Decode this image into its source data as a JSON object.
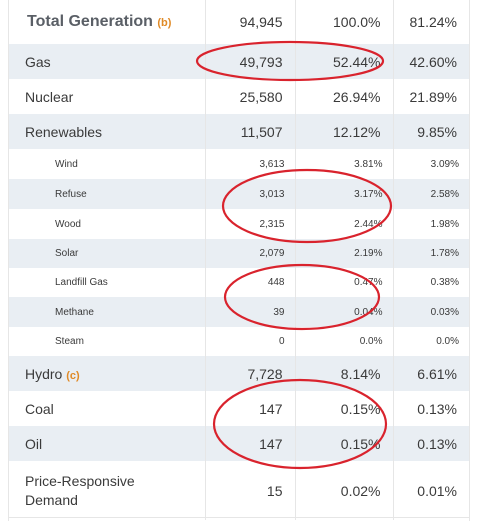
{
  "annotation_color": "#d9232d",
  "rows": [
    {
      "label": "Total Generation",
      "note": "(b)",
      "value": "94,945",
      "share_total": "100.0%",
      "share_other": "81.24%"
    },
    {
      "label": "Gas",
      "value": "49,793",
      "share_total": "52.44%",
      "share_other": "42.60%"
    },
    {
      "label": "Nuclear",
      "value": "25,580",
      "share_total": "26.94%",
      "share_other": "21.89%"
    },
    {
      "label": "Renewables",
      "value": "11,507",
      "share_total": "12.12%",
      "share_other": "9.85%"
    },
    {
      "label": "Wind",
      "value": "3,613",
      "share_total": "3.81%",
      "share_other": "3.09%"
    },
    {
      "label": "Refuse",
      "value": "3,013",
      "share_total": "3.17%",
      "share_other": "2.58%"
    },
    {
      "label": "Wood",
      "value": "2,315",
      "share_total": "2.44%",
      "share_other": "1.98%"
    },
    {
      "label": "Solar",
      "value": "2,079",
      "share_total": "2.19%",
      "share_other": "1.78%"
    },
    {
      "label": "Landfill Gas",
      "value": "448",
      "share_total": "0.47%",
      "share_other": "0.38%"
    },
    {
      "label": "Methane",
      "value": "39",
      "share_total": "0.04%",
      "share_other": "0.03%"
    },
    {
      "label": "Steam",
      "value": "0",
      "share_total": "0.0%",
      "share_other": "0.0%"
    },
    {
      "label": "Hydro",
      "note": "(c)",
      "value": "7,728",
      "share_total": "8.14%",
      "share_other": "6.61%"
    },
    {
      "label": "Coal",
      "value": "147",
      "share_total": "0.15%",
      "share_other": "0.13%"
    },
    {
      "label": "Oil",
      "value": "147",
      "share_total": "0.15%",
      "share_other": "0.13%"
    },
    {
      "label_line1": "Price-Responsive",
      "label_line2": "Demand",
      "value": "15",
      "share_total": "0.02%",
      "share_other": "0.01%"
    }
  ]
}
